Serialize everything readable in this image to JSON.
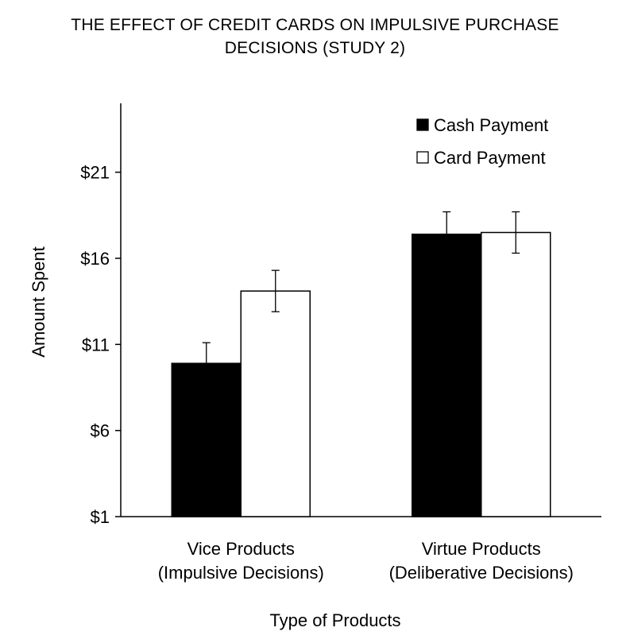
{
  "chart_data": {
    "type": "bar",
    "title": "THE EFFECT OF CREDIT CARDS ON IMPULSIVE PURCHASE DECISIONS (STUDY 2)",
    "title_lines": [
      "THE EFFECT OF CREDIT CARDS ON IMPULSIVE PURCHASE",
      "DECISIONS (STUDY 2)"
    ],
    "xlabel": "Type of Products",
    "ylabel": "Amount Spent",
    "ylim": [
      1,
      25
    ],
    "yticks": [
      1,
      6,
      11,
      16,
      21
    ],
    "ytick_labels": [
      "$1",
      "$6",
      "$11",
      "$16",
      "$21"
    ],
    "grid": false,
    "legend_position": "top-right",
    "categories": [
      [
        "Vice Products",
        "(Impulsive Decisions)"
      ],
      [
        "Virtue Products",
        "(Deliberative Decisions)"
      ]
    ],
    "series": [
      {
        "name": "Cash Payment",
        "color": "#000000",
        "values": [
          9.9,
          17.4
        ],
        "error": [
          1.2,
          1.3
        ]
      },
      {
        "name": "Card Payment",
        "color": "#ffffff",
        "values": [
          14.1,
          17.5
        ],
        "error": [
          1.2,
          1.2
        ]
      }
    ]
  }
}
